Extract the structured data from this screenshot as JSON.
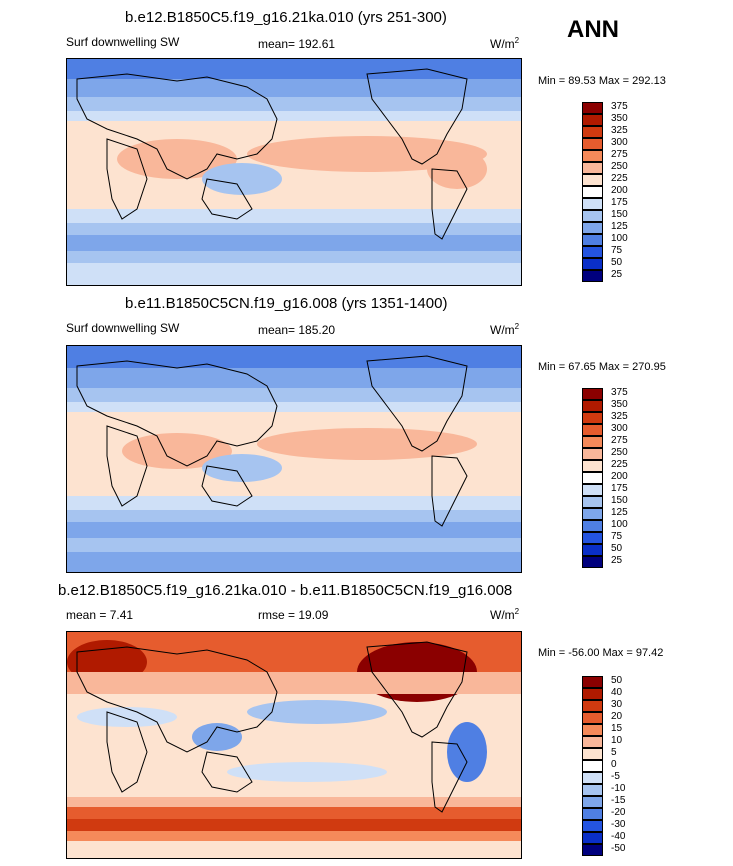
{
  "season": "ANN",
  "units": "W/m",
  "units_sup": "2",
  "chart_data": [
    {
      "type": "heatmap",
      "title": "b.e12.B1850C5.f19_g16.21ka.010 (yrs 251-300)",
      "variable": "Surf downwelling SW",
      "mean_text": "mean= 192.61",
      "min_max_text": "Min =  89.53 Max = 292.13",
      "min": 89.53,
      "max": 292.13,
      "mean": 192.61,
      "levels": [
        "375",
        "350",
        "325",
        "300",
        "275",
        "250",
        "225",
        "200",
        "175",
        "150",
        "125",
        "100",
        "75",
        "50",
        "25"
      ],
      "colors": [
        "#8b0000",
        "#b01a00",
        "#d03a10",
        "#e65c2e",
        "#f58a5a",
        "#f9b79a",
        "#fde3d0",
        "#ffffff",
        "#cfe0f7",
        "#a6c4f0",
        "#7ea6ea",
        "#4f7fe3",
        "#2454e0",
        "#0a2fc8",
        "#00007e"
      ]
    },
    {
      "type": "heatmap",
      "title": "b.e11.B1850C5CN.f19_g16.008 (yrs 1351-1400)",
      "variable": "Surf downwelling SW",
      "mean_text": "mean= 185.20",
      "min_max_text": "Min =  67.65 Max = 270.95",
      "min": 67.65,
      "max": 270.95,
      "mean": 185.2,
      "levels": [
        "375",
        "350",
        "325",
        "300",
        "275",
        "250",
        "225",
        "200",
        "175",
        "150",
        "125",
        "100",
        "75",
        "50",
        "25"
      ],
      "colors": [
        "#8b0000",
        "#b01a00",
        "#d03a10",
        "#e65c2e",
        "#f58a5a",
        "#f9b79a",
        "#fde3d0",
        "#ffffff",
        "#cfe0f7",
        "#a6c4f0",
        "#7ea6ea",
        "#4f7fe3",
        "#2454e0",
        "#0a2fc8",
        "#00007e"
      ]
    },
    {
      "type": "heatmap",
      "title": "b.e12.B1850C5.f19_g16.21ka.010 - b.e11.B1850C5CN.f19_g16.008",
      "mean_text": "mean =   7.41",
      "rmse_text": "rmse =  19.09",
      "min_max_text": "Min = -56.00 Max =  97.42",
      "min": -56.0,
      "max": 97.42,
      "mean": 7.41,
      "rmse": 19.09,
      "levels": [
        "50",
        "40",
        "30",
        "20",
        "15",
        "10",
        "5",
        "0",
        "-5",
        "-10",
        "-15",
        "-20",
        "-30",
        "-40",
        "-50"
      ],
      "colors": [
        "#8b0000",
        "#b01a00",
        "#d03a10",
        "#e65c2e",
        "#f58a5a",
        "#f9b79a",
        "#fde3d0",
        "#ffffff",
        "#cfe0f7",
        "#a6c4f0",
        "#7ea6ea",
        "#4f7fe3",
        "#2454e0",
        "#0a2fc8",
        "#00007e"
      ]
    }
  ]
}
